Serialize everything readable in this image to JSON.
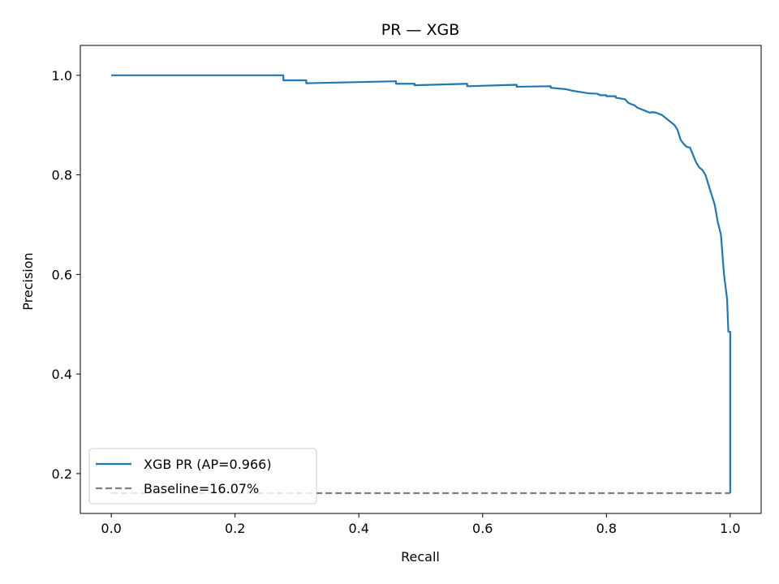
{
  "chart_data": {
    "type": "line",
    "title": "PR — XGB",
    "xlabel": "Recall",
    "ylabel": "Precision",
    "xlim": [
      -0.05,
      1.05
    ],
    "ylim": [
      0.12,
      1.06
    ],
    "xticks": [
      0.0,
      0.2,
      0.4,
      0.6,
      0.8,
      1.0
    ],
    "xtick_labels": [
      "0.0",
      "0.2",
      "0.4",
      "0.6",
      "0.8",
      "1.0"
    ],
    "yticks": [
      0.2,
      0.4,
      0.6,
      0.8,
      1.0
    ],
    "ytick_labels": [
      "0.2",
      "0.4",
      "0.6",
      "0.8",
      "1.0"
    ],
    "grid": false,
    "legend_position": "lower-left",
    "series": [
      {
        "name": "XGB PR (AP=0.966)",
        "color": "#1f77b4",
        "style": "solid",
        "x": [
          0.0,
          0.278,
          0.278,
          0.315,
          0.315,
          0.46,
          0.46,
          0.49,
          0.49,
          0.575,
          0.575,
          0.655,
          0.655,
          0.71,
          0.71,
          0.735,
          0.745,
          0.76,
          0.77,
          0.785,
          0.79,
          0.8,
          0.8,
          0.815,
          0.815,
          0.83,
          0.835,
          0.84,
          0.845,
          0.85,
          0.86,
          0.87,
          0.875,
          0.88,
          0.89,
          0.9,
          0.905,
          0.91,
          0.915,
          0.92,
          0.925,
          0.93,
          0.935,
          0.94,
          0.945,
          0.95,
          0.955,
          0.96,
          0.965,
          0.97,
          0.975,
          0.98,
          0.985,
          0.99,
          0.995,
          0.997,
          1.0,
          1.0,
          1.0
        ],
        "y": [
          1.0,
          1.0,
          0.99,
          0.99,
          0.984,
          0.988,
          0.983,
          0.983,
          0.98,
          0.983,
          0.978,
          0.981,
          0.977,
          0.978,
          0.975,
          0.972,
          0.969,
          0.966,
          0.964,
          0.963,
          0.96,
          0.96,
          0.958,
          0.958,
          0.955,
          0.952,
          0.945,
          0.942,
          0.94,
          0.935,
          0.93,
          0.925,
          0.926,
          0.925,
          0.92,
          0.91,
          0.905,
          0.9,
          0.89,
          0.87,
          0.862,
          0.856,
          0.855,
          0.84,
          0.825,
          0.815,
          0.81,
          0.8,
          0.78,
          0.76,
          0.74,
          0.705,
          0.68,
          0.6,
          0.55,
          0.485,
          0.485,
          0.161,
          0.161
        ]
      },
      {
        "name": "Baseline=16.07%",
        "color": "#808080",
        "style": "dashed",
        "x": [
          0.0,
          1.0
        ],
        "y": [
          0.1607,
          0.1607
        ]
      }
    ]
  }
}
